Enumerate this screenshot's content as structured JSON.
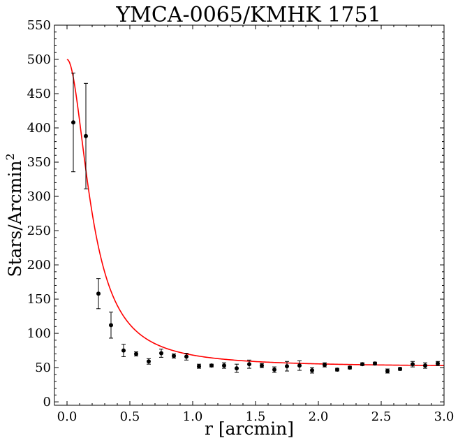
{
  "chart_data": {
    "type": "scatter",
    "title": "YMCA-0065/KMHK 1751",
    "xlabel": "r [arcmin]",
    "ylabel_main": "Stars/Arcmin",
    "ylabel_sup": "2",
    "xlim": [
      -0.1,
      3.0
    ],
    "ylim": [
      -5,
      550
    ],
    "xticks": [
      0.0,
      0.5,
      1.0,
      1.5,
      2.0,
      2.5,
      3.0
    ],
    "xtick_labels": [
      "0.0",
      "0.5",
      "1.0",
      "1.5",
      "2.0",
      "2.5",
      "3.0"
    ],
    "yticks": [
      0,
      50,
      100,
      150,
      200,
      250,
      300,
      350,
      400,
      450,
      500,
      550
    ],
    "ytick_labels": [
      "0",
      "50",
      "100",
      "150",
      "200",
      "250",
      "300",
      "350",
      "400",
      "450",
      "500",
      "550"
    ],
    "grid": false,
    "series": [
      {
        "kind": "errorbar-points",
        "color": "#000000",
        "points": [
          {
            "x": 0.05,
            "y": 408,
            "err": 72
          },
          {
            "x": 0.15,
            "y": 388,
            "err": 77
          },
          {
            "x": 0.25,
            "y": 158,
            "err": 22
          },
          {
            "x": 0.35,
            "y": 112,
            "err": 19
          },
          {
            "x": 0.45,
            "y": 75,
            "err": 9
          },
          {
            "x": 0.55,
            "y": 70,
            "err": 3
          },
          {
            "x": 0.65,
            "y": 59,
            "err": 4
          },
          {
            "x": 0.75,
            "y": 71,
            "err": 6
          },
          {
            "x": 0.85,
            "y": 67,
            "err": 3
          },
          {
            "x": 0.95,
            "y": 66,
            "err": 5
          },
          {
            "x": 1.05,
            "y": 52,
            "err": 3
          },
          {
            "x": 1.15,
            "y": 53,
            "err": 2
          },
          {
            "x": 1.25,
            "y": 53,
            "err": 4
          },
          {
            "x": 1.35,
            "y": 49,
            "err": 6
          },
          {
            "x": 1.45,
            "y": 55,
            "err": 6
          },
          {
            "x": 1.55,
            "y": 53,
            "err": 3
          },
          {
            "x": 1.65,
            "y": 47,
            "err": 4
          },
          {
            "x": 1.75,
            "y": 52,
            "err": 7
          },
          {
            "x": 1.85,
            "y": 53,
            "err": 7
          },
          {
            "x": 1.95,
            "y": 46,
            "err": 4
          },
          {
            "x": 2.05,
            "y": 54,
            "err": 3
          },
          {
            "x": 2.15,
            "y": 47,
            "err": 2
          },
          {
            "x": 2.25,
            "y": 50,
            "err": 2
          },
          {
            "x": 2.35,
            "y": 55,
            "err": 2
          },
          {
            "x": 2.45,
            "y": 56,
            "err": 2
          },
          {
            "x": 2.55,
            "y": 45,
            "err": 3
          },
          {
            "x": 2.65,
            "y": 48,
            "err": 2
          },
          {
            "x": 2.75,
            "y": 55,
            "err": 4
          },
          {
            "x": 2.85,
            "y": 53,
            "err": 4
          },
          {
            "x": 2.95,
            "y": 56,
            "err": 3
          }
        ]
      },
      {
        "kind": "fit-curve",
        "color": "#ff0000",
        "model": "king",
        "background": 51,
        "amplitude": 449,
        "core_radius": 0.2
      }
    ]
  }
}
